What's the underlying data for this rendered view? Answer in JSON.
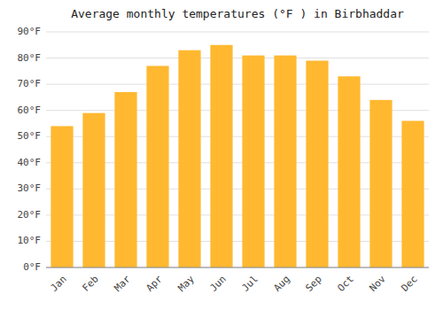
{
  "chart_data": {
    "type": "bar",
    "title": "Average monthly temperatures (°F ) in Birbhaddar",
    "categories": [
      "Jan",
      "Feb",
      "Mar",
      "Apr",
      "May",
      "Jun",
      "Jul",
      "Aug",
      "Sep",
      "Oct",
      "Nov",
      "Dec"
    ],
    "values": [
      54,
      59,
      67,
      77,
      83,
      85,
      81,
      81,
      79,
      73,
      64,
      56
    ],
    "color": "#FFB830",
    "ylim": [
      0,
      90
    ],
    "yticks": [
      {
        "value": 0,
        "label": "0°F"
      },
      {
        "value": 10,
        "label": "10°F"
      },
      {
        "value": 20,
        "label": "20°F"
      },
      {
        "value": 30,
        "label": "30°F"
      },
      {
        "value": 40,
        "label": "40°F"
      },
      {
        "value": 50,
        "label": "50°F"
      },
      {
        "value": 60,
        "label": "60°F"
      },
      {
        "value": 70,
        "label": "70°F"
      },
      {
        "value": 80,
        "label": "80°F"
      },
      {
        "value": 90,
        "label": "90°F"
      }
    ],
    "grid": true
  }
}
